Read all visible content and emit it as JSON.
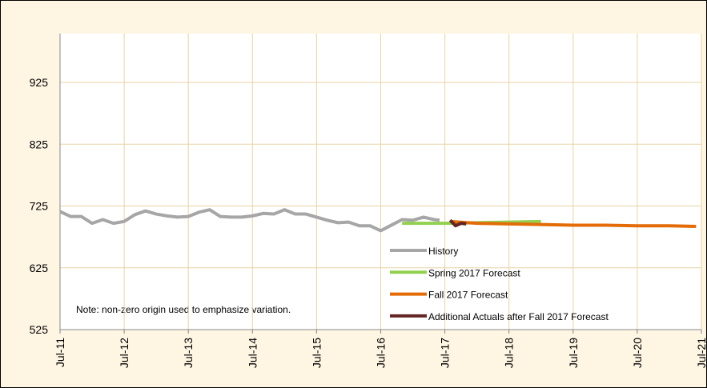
{
  "chart_data": {
    "type": "line",
    "note": "Note: non-zero origin used to emphasize variation.",
    "xlim": [
      "2011-07",
      "2021-07"
    ],
    "xticks": [
      {
        "value": "2011-07",
        "label": "Jul-11"
      },
      {
        "value": "2012-07",
        "label": "Jul-12"
      },
      {
        "value": "2013-07",
        "label": "Jul-13"
      },
      {
        "value": "2014-07",
        "label": "Jul-14"
      },
      {
        "value": "2015-07",
        "label": "Jul-15"
      },
      {
        "value": "2016-07",
        "label": "Jul-16"
      },
      {
        "value": "2017-07",
        "label": "Jul-17"
      },
      {
        "value": "2018-07",
        "label": "Jul-18"
      },
      {
        "value": "2019-07",
        "label": "Jul-19"
      },
      {
        "value": "2020-07",
        "label": "Jul-20"
      },
      {
        "value": "2021-07",
        "label": "Jul-21"
      }
    ],
    "ylim": [
      525,
      1004
    ],
    "yticks": [
      525,
      625,
      725,
      825,
      925
    ],
    "grid": true,
    "series": [
      {
        "name": "History",
        "color": "#a6a6a6",
        "x": [
          "2011-07",
          "2011-09",
          "2011-11",
          "2012-01",
          "2012-03",
          "2012-05",
          "2012-07",
          "2012-09",
          "2012-11",
          "2013-01",
          "2013-03",
          "2013-05",
          "2013-07",
          "2013-09",
          "2013-11",
          "2014-01",
          "2014-03",
          "2014-05",
          "2014-07",
          "2014-09",
          "2014-11",
          "2015-01",
          "2015-03",
          "2015-05",
          "2015-07",
          "2015-09",
          "2015-11",
          "2016-01",
          "2016-03",
          "2016-05",
          "2016-07",
          "2016-09",
          "2016-11",
          "2017-01",
          "2017-03",
          "2017-05",
          "2017-06"
        ],
        "values": [
          716,
          708,
          708,
          697,
          703,
          697,
          700,
          711,
          717,
          712,
          709,
          707,
          708,
          715,
          719,
          708,
          707,
          707,
          709,
          713,
          712,
          719,
          712,
          712,
          707,
          702,
          698,
          699,
          693,
          693,
          685,
          694,
          703,
          702,
          707,
          703,
          702
        ]
      },
      {
        "name": "Spring 2017 Forecast",
        "color": "#92d050",
        "x": [
          "2016-11",
          "2017-07",
          "2018-01",
          "2018-07",
          "2019-01"
        ],
        "values": [
          697,
          697,
          698,
          699,
          700
        ]
      },
      {
        "name": "Fall 2017 Forecast",
        "color": "#e36c09",
        "x": [
          "2017-08",
          "2018-01",
          "2018-07",
          "2019-01",
          "2019-07",
          "2020-01",
          "2020-07",
          "2021-01",
          "2021-06"
        ],
        "values": [
          700,
          697,
          696,
          695,
          694,
          694,
          693,
          693,
          692
        ]
      },
      {
        "name": "Additional Actuals after Fall 2017 Forecast",
        "color": "#632523",
        "x": [
          "2017-08",
          "2017-09",
          "2017-10",
          "2017-11"
        ],
        "values": [
          702,
          693,
          697,
          696
        ]
      }
    ]
  }
}
